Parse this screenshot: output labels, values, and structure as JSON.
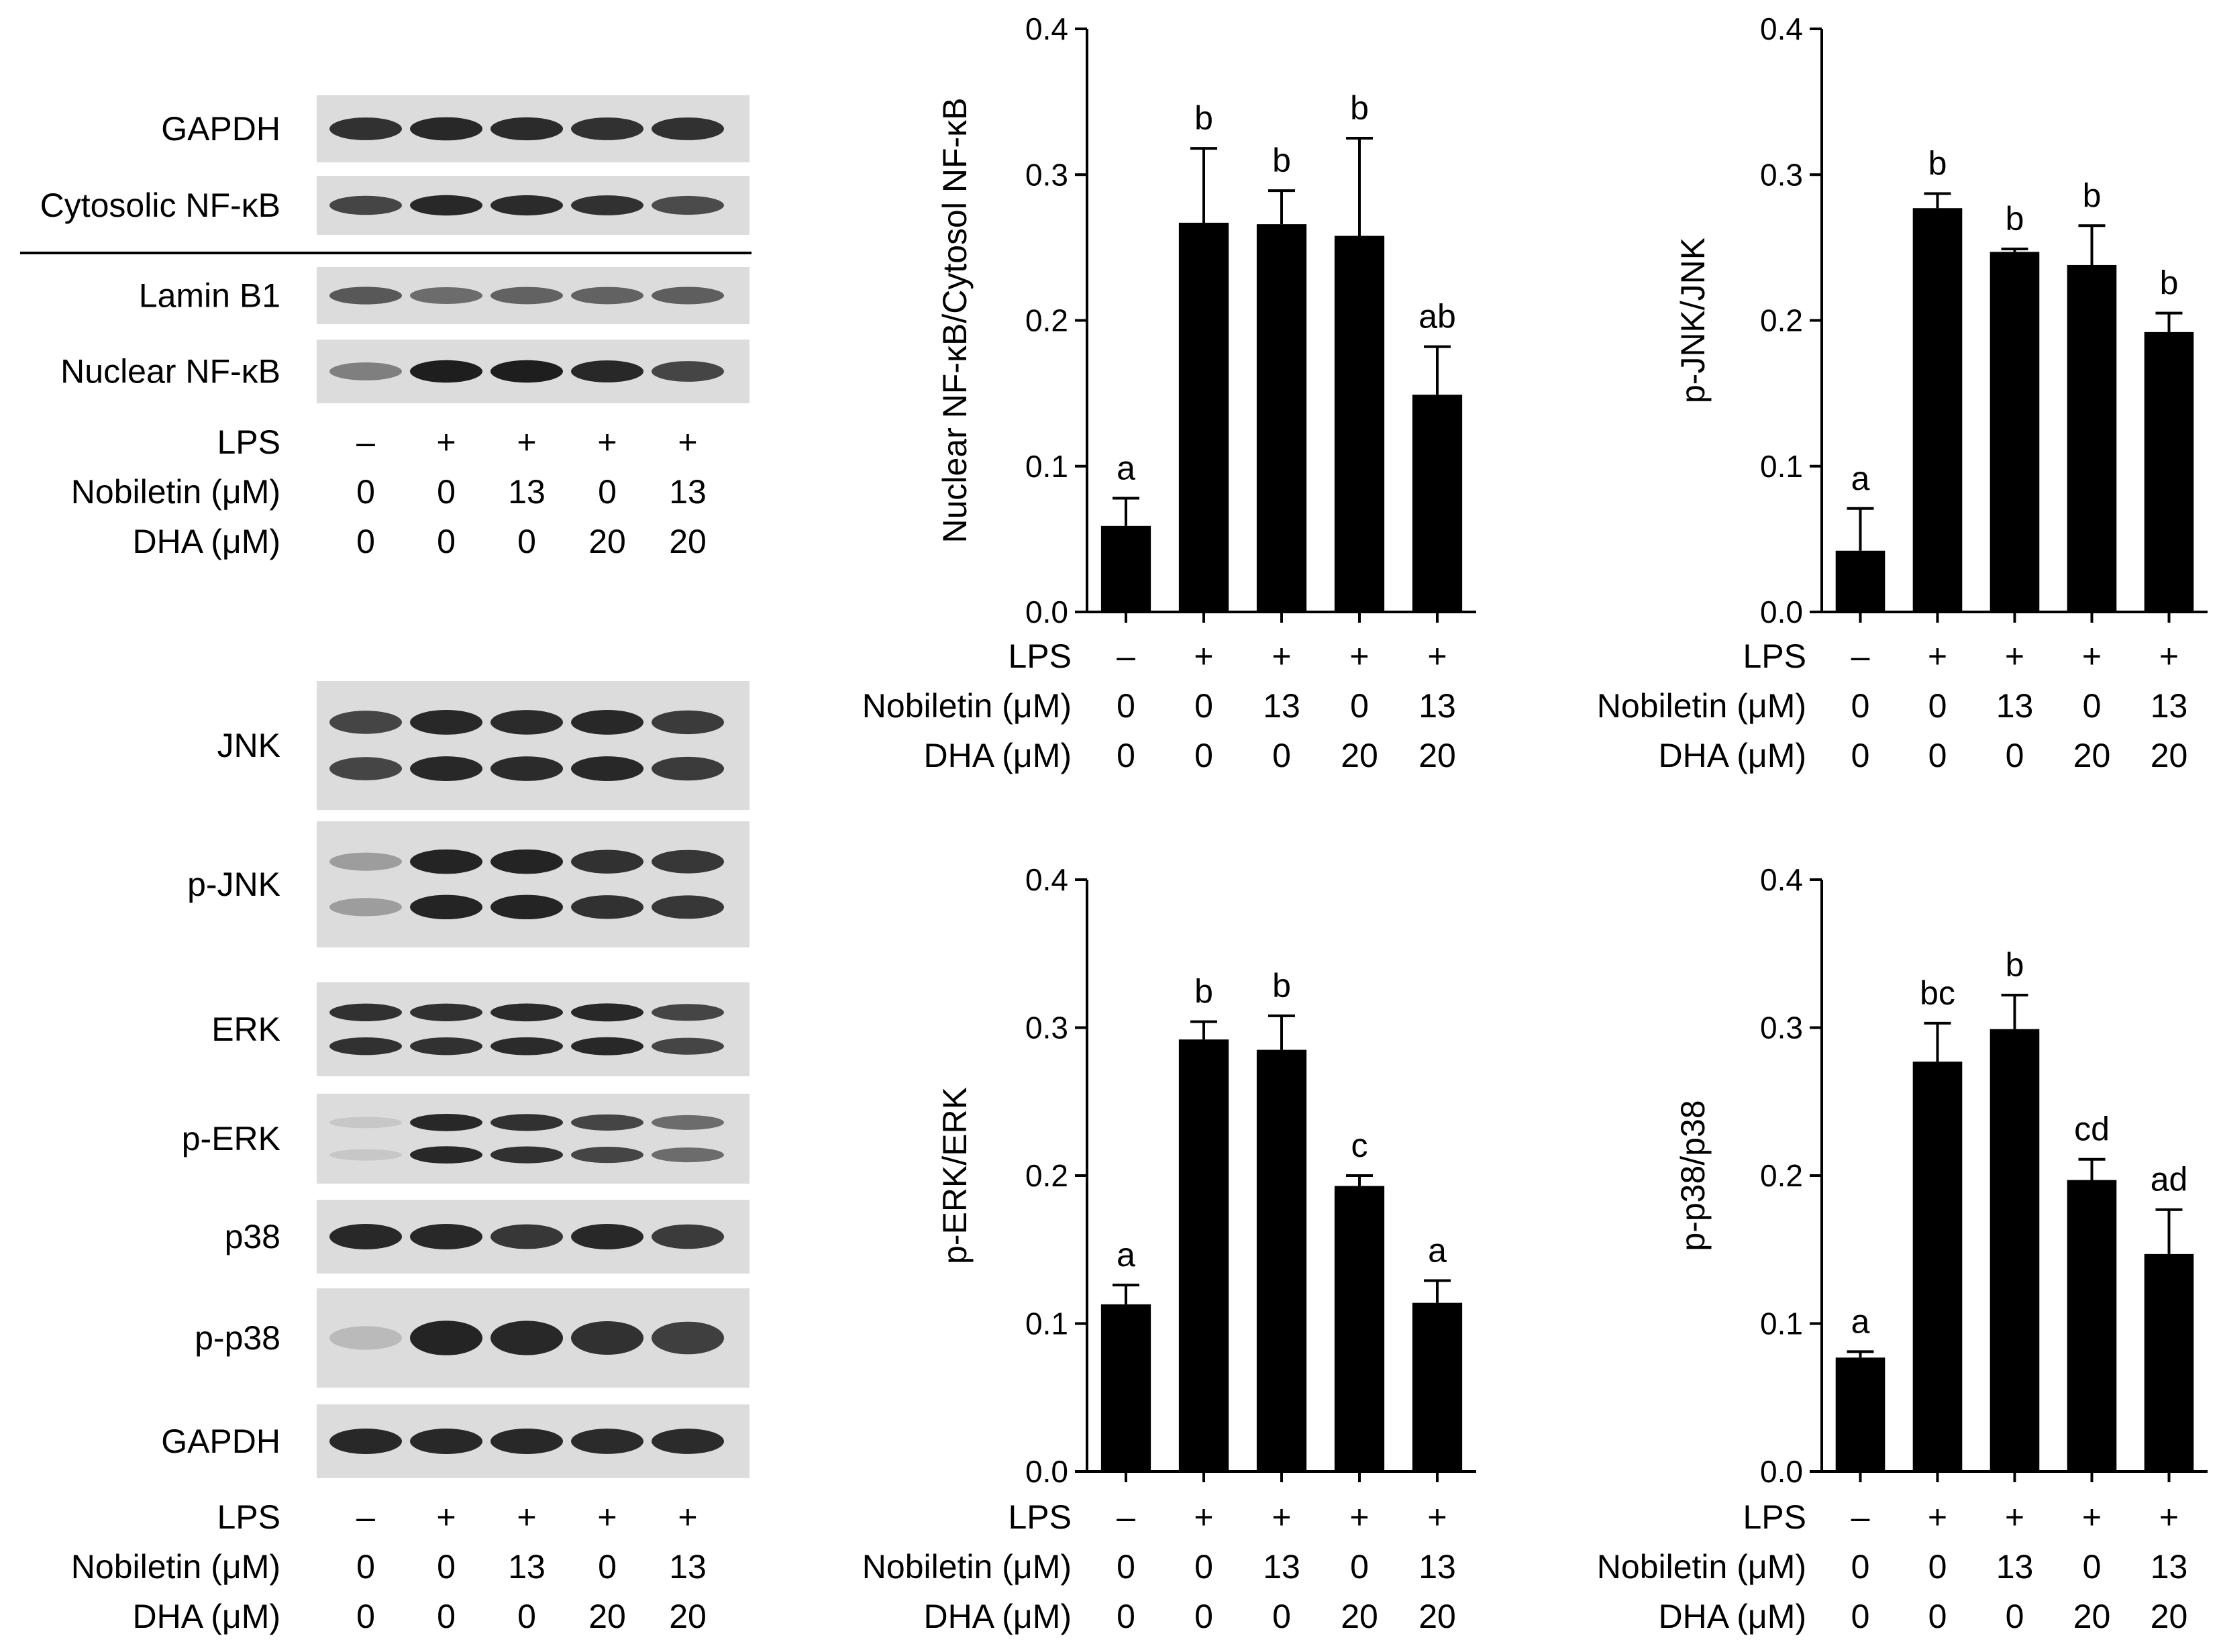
{
  "conditions": {
    "labels": [
      "LPS",
      "Nobiletin (μM)",
      "DHA (μM)"
    ],
    "rows": [
      [
        "–",
        "+",
        "+",
        "+",
        "+"
      ],
      [
        "0",
        "0",
        "13",
        "0",
        "13"
      ],
      [
        "0",
        "0",
        "0",
        "20",
        "20"
      ]
    ]
  },
  "blots": {
    "top_panel": [
      {
        "label": "GAPDH",
        "intensities": [
          0.85,
          0.9,
          0.88,
          0.85,
          0.85
        ],
        "bands": 1
      },
      {
        "label": "Cytosolic NF-κB",
        "intensities": [
          0.75,
          0.9,
          0.88,
          0.85,
          0.72
        ],
        "bands": 1
      },
      {
        "label": "Lamin B1",
        "intensities": [
          0.65,
          0.55,
          0.6,
          0.6,
          0.62
        ],
        "bands": 1
      },
      {
        "label": "Nuclear NF-κB",
        "intensities": [
          0.45,
          0.95,
          0.95,
          0.9,
          0.75
        ],
        "bands": 1
      }
    ],
    "bottom_panel": [
      {
        "label": "JNK",
        "intensities": [
          0.75,
          0.9,
          0.88,
          0.9,
          0.8
        ],
        "bands": 2
      },
      {
        "label": "p-JNK",
        "intensities": [
          0.3,
          0.92,
          0.92,
          0.85,
          0.82
        ],
        "bands": 2
      },
      {
        "label": "ERK",
        "intensities": [
          0.85,
          0.85,
          0.88,
          0.9,
          0.75
        ],
        "bands": 2
      },
      {
        "label": "p-ERK",
        "intensities": [
          0.08,
          0.9,
          0.85,
          0.75,
          0.55
        ],
        "bands": 2
      },
      {
        "label": "p38",
        "intensities": [
          0.9,
          0.9,
          0.82,
          0.9,
          0.8
        ],
        "bands": 1
      },
      {
        "label": "p-p38",
        "intensities": [
          0.15,
          0.92,
          0.9,
          0.85,
          0.78
        ],
        "bands": 1
      },
      {
        "label": "GAPDH",
        "intensities": [
          0.9,
          0.9,
          0.9,
          0.88,
          0.88
        ],
        "bands": 1
      }
    ]
  },
  "chart_data": [
    {
      "type": "bar",
      "ylabel": "Nuclear NF-κB/Cytosol NF-κB",
      "ylim": [
        0,
        0.4
      ],
      "yticks": [
        "0.0",
        "0.1",
        "0.2",
        "0.3",
        "0.4"
      ],
      "values": [
        0.059,
        0.267,
        0.266,
        0.258,
        0.149
      ],
      "errors": [
        0.019,
        0.051,
        0.023,
        0.067,
        0.033
      ],
      "annotations": [
        "a",
        "b",
        "b",
        "b",
        "ab"
      ],
      "bar_color": "#000000"
    },
    {
      "type": "bar",
      "ylabel": "p-JNK/JNK",
      "ylim": [
        0,
        0.4
      ],
      "yticks": [
        "0.0",
        "0.1",
        "0.2",
        "0.3",
        "0.4"
      ],
      "values": [
        0.042,
        0.277,
        0.247,
        0.238,
        0.192
      ],
      "errors": [
        0.029,
        0.01,
        0.002,
        0.027,
        0.013
      ],
      "annotations": [
        "a",
        "b",
        "b",
        "b",
        "b"
      ],
      "bar_color": "#000000"
    },
    {
      "type": "bar",
      "ylabel": "p-ERK/ERK",
      "ylim": [
        0,
        0.4
      ],
      "yticks": [
        "0.0",
        "0.1",
        "0.2",
        "0.3",
        "0.4"
      ],
      "values": [
        0.113,
        0.292,
        0.285,
        0.193,
        0.114
      ],
      "errors": [
        0.013,
        0.012,
        0.023,
        0.007,
        0.015
      ],
      "annotations": [
        "a",
        "b",
        "b",
        "c",
        "a"
      ],
      "bar_color": "#000000"
    },
    {
      "type": "bar",
      "ylabel": "p-p38/p38",
      "ylim": [
        0,
        0.4
      ],
      "yticks": [
        "0.0",
        "0.1",
        "0.2",
        "0.3",
        "0.4"
      ],
      "values": [
        0.077,
        0.277,
        0.299,
        0.197,
        0.147
      ],
      "errors": [
        0.004,
        0.026,
        0.023,
        0.014,
        0.03
      ],
      "annotations": [
        "a",
        "bc",
        "b",
        "cd",
        "ad"
      ],
      "bar_color": "#000000"
    }
  ]
}
